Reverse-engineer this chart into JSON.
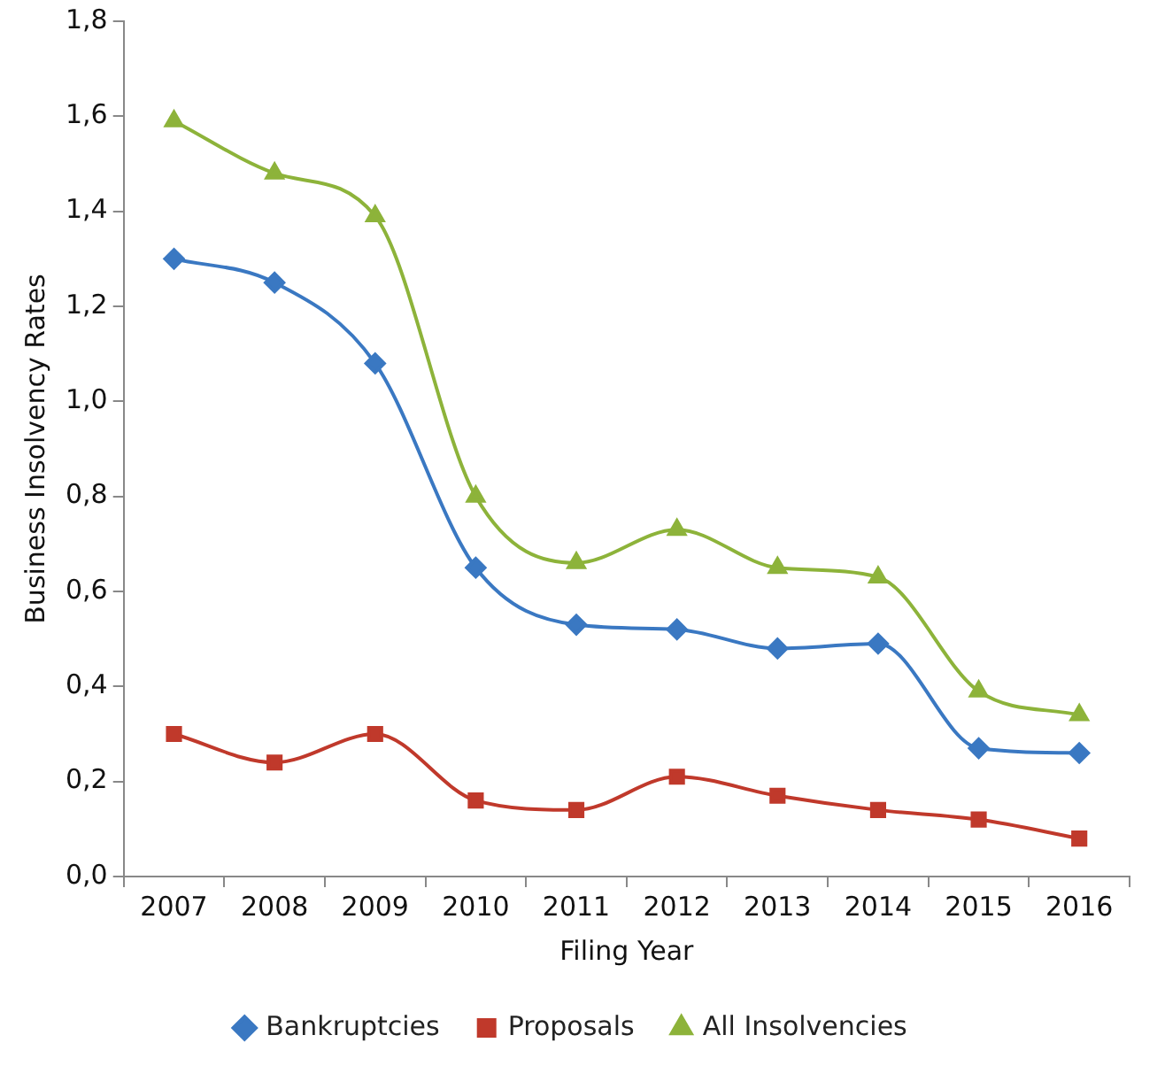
{
  "chart_data": {
    "type": "line",
    "xlabel": "Filing Year",
    "ylabel": "Business Insolvency Rates",
    "categories": [
      "2007",
      "2008",
      "2009",
      "2010",
      "2011",
      "2012",
      "2013",
      "2014",
      "2015",
      "2016"
    ],
    "series": [
      {
        "name": "Bankruptcies",
        "color": "#3a78c2",
        "marker": "diamond",
        "values": [
          1.3,
          1.25,
          1.08,
          0.65,
          0.53,
          0.52,
          0.48,
          0.49,
          0.27,
          0.26
        ]
      },
      {
        "name": "Proposals",
        "color": "#c0392b",
        "marker": "square",
        "values": [
          0.3,
          0.24,
          0.3,
          0.16,
          0.14,
          0.21,
          0.17,
          0.14,
          0.12,
          0.08
        ]
      },
      {
        "name": "All Insolvencies",
        "color": "#8db33a",
        "marker": "triangle",
        "values": [
          1.59,
          1.48,
          1.39,
          0.8,
          0.66,
          0.73,
          0.65,
          0.63,
          0.39,
          0.34
        ]
      }
    ],
    "ylim": [
      0,
      1.8
    ],
    "yticks": [
      {
        "value": 0,
        "label": "0,0"
      },
      {
        "value": 0.2,
        "label": "0,2"
      },
      {
        "value": 0.4,
        "label": "0,4"
      },
      {
        "value": 0.6,
        "label": "0,6"
      },
      {
        "value": 0.8,
        "label": "0,8"
      },
      {
        "value": 1.0,
        "label": "1,0"
      },
      {
        "value": 1.2,
        "label": "1,2"
      },
      {
        "value": 1.4,
        "label": "1,4"
      },
      {
        "value": 1.6,
        "label": "1,6"
      },
      {
        "value": 1.8,
        "label": "1,8"
      }
    ],
    "grid": false,
    "legend": "bottom",
    "line_style": "solid"
  }
}
